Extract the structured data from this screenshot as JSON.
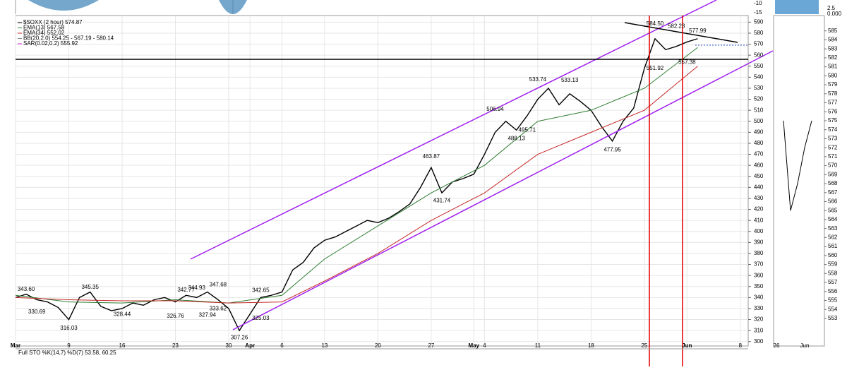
{
  "chart_data": {
    "type": "line",
    "legend": [
      "$SOXX (2 hour) 574.87",
      "EMA(13) 567.58",
      "EMA(34) 552.02",
      "BB(20,2.0) 554.25 - 567.19 - 580.14",
      "SAR(0.02,0.2) 555.92"
    ],
    "lower_panel_title": "Full STO %K(14,7) %D(7) 53.58, 60.25",
    "top_panel_labels": [
      "-10",
      "-15"
    ],
    "zoom_top_labels": [
      "2.5",
      "0.000"
    ],
    "ylim": [
      296,
      596
    ],
    "yticks": [
      590,
      580,
      570,
      560,
      550,
      540,
      530,
      520,
      510,
      500,
      490,
      480,
      470,
      460,
      450,
      440,
      430,
      420,
      410,
      400,
      390,
      380,
      370,
      360,
      350,
      340,
      330,
      320,
      310,
      300
    ],
    "xticks": [
      {
        "value": "Mar 2",
        "label": "Mar"
      },
      {
        "value": "Mar 9",
        "label": "9"
      },
      {
        "value": "Mar 16",
        "label": "16"
      },
      {
        "value": "Mar 23",
        "label": "23"
      },
      {
        "value": "Mar 30",
        "label": "30"
      },
      {
        "value": "Apr 1",
        "label": "Apr"
      },
      {
        "value": "Apr 6",
        "label": "6"
      },
      {
        "value": "Apr 13",
        "label": "13"
      },
      {
        "value": "Apr 20",
        "label": "20"
      },
      {
        "value": "Apr 27",
        "label": "27"
      },
      {
        "value": "May 1",
        "label": "May"
      },
      {
        "value": "May 4",
        "label": "4"
      },
      {
        "value": "May 11",
        "label": "11"
      },
      {
        "value": "May 18",
        "label": "18"
      },
      {
        "value": "May 26",
        "label": "25"
      },
      {
        "value": "Jun 1",
        "label": "Jun"
      },
      {
        "value": "Jun 8",
        "label": "8"
      }
    ],
    "grid": true,
    "series": [
      {
        "name": "$SOXX",
        "color": "#000000",
        "x": [
          "Mar 2",
          "Mar 3",
          "Mar 4",
          "Mar 5",
          "Mar 6",
          "Mar 9",
          "Mar 10",
          "Mar 11",
          "Mar 12",
          "Mar 13",
          "Mar 16",
          "Mar 17",
          "Mar 18",
          "Mar 19",
          "Mar 20",
          "Mar 23",
          "Mar 24",
          "Mar 25",
          "Mar 26",
          "Mar 27",
          "Mar 30",
          "Mar 31",
          "Apr 1",
          "Apr 2",
          "Apr 3",
          "Apr 6",
          "Apr 7",
          "Apr 8",
          "Apr 9",
          "Apr 13",
          "Apr 14",
          "Apr 15",
          "Apr 16",
          "Apr 17",
          "Apr 20",
          "Apr 21",
          "Apr 22",
          "Apr 23",
          "Apr 24",
          "Apr 27",
          "Apr 28",
          "Apr 29",
          "Apr 30",
          "May 1",
          "May 4",
          "May 5",
          "May 6",
          "May 7",
          "May 8",
          "May 11",
          "May 12",
          "May 13",
          "May 14",
          "May 15",
          "May 18",
          "May 19",
          "May 20",
          "May 21",
          "May 22",
          "May 26",
          "May 27",
          "May 28",
          "May 29",
          "Jun 1",
          "Jun 2"
        ],
        "values": [
          340,
          343,
          338,
          336,
          331,
          320,
          340,
          345,
          332,
          328,
          330,
          335,
          333,
          338,
          340,
          336,
          342,
          340,
          345,
          338,
          330,
          310,
          325,
          340,
          342,
          345,
          365,
          372,
          385,
          392,
          395,
          400,
          405,
          410,
          408,
          412,
          418,
          425,
          440,
          458,
          435,
          445,
          448,
          452,
          470,
          490,
          500,
          492,
          505,
          520,
          530,
          515,
          525,
          518,
          510,
          495,
          482,
          500,
          512,
          548,
          575,
          565,
          568,
          572,
          575
        ]
      },
      {
        "name": "EMA(13)",
        "color": "#2e7d32",
        "x": [
          "Mar 2",
          "Mar 9",
          "Mar 16",
          "Mar 23",
          "Mar 30",
          "Apr 6",
          "Apr 13",
          "Apr 20",
          "Apr 27",
          "May 4",
          "May 11",
          "May 18",
          "May 26",
          "Jun 2"
        ],
        "values": [
          342,
          336,
          335,
          338,
          335,
          342,
          375,
          405,
          435,
          460,
          500,
          510,
          530,
          567
        ]
      },
      {
        "name": "EMA(34)",
        "color": "#c62828",
        "x": [
          "Mar 2",
          "Mar 9",
          "Mar 16",
          "Mar 23",
          "Mar 30",
          "Apr 6",
          "Apr 13",
          "Apr 20",
          "Apr 27",
          "May 4",
          "May 11",
          "May 18",
          "May 26",
          "Jun 2"
        ],
        "values": [
          340,
          338,
          337,
          337,
          335,
          336,
          355,
          380,
          410,
          435,
          470,
          490,
          510,
          550
        ]
      }
    ],
    "annotations": [
      {
        "x": "Mar 3",
        "value": 343.6,
        "label": "343.60"
      },
      {
        "x": "Mar 4",
        "value": 330.69,
        "label": "330.69"
      },
      {
        "x": "Mar 9",
        "value": 316.03,
        "label": "316.03"
      },
      {
        "x": "Mar 11",
        "value": 345.35,
        "label": "345.35"
      },
      {
        "x": "Mar 16",
        "value": 328.44,
        "label": "328.44"
      },
      {
        "x": "Mar 23",
        "value": 326.76,
        "label": "326.76"
      },
      {
        "x": "Mar 24",
        "value": 342.77,
        "label": "342.77"
      },
      {
        "x": "Mar 25",
        "value": 344.93,
        "label": "344.93"
      },
      {
        "x": "Mar 26",
        "value": 327.94,
        "label": "327.94"
      },
      {
        "x": "Mar 27",
        "value": 333.62,
        "label": "333.62"
      },
      {
        "x": "Mar 27",
        "value": 347.68,
        "label": "347.68"
      },
      {
        "x": "Mar 31",
        "value": 307.26,
        "label": "307.26"
      },
      {
        "x": "Apr 2",
        "value": 325.03,
        "label": "325.03"
      },
      {
        "x": "Apr 2",
        "value": 342.65,
        "label": "342.65"
      },
      {
        "x": "Apr 27",
        "value": 463.87,
        "label": "463.87"
      },
      {
        "x": "Apr 28",
        "value": 431.74,
        "label": "431.74"
      },
      {
        "x": "May 5",
        "value": 506.94,
        "label": "506.94"
      },
      {
        "x": "May 7",
        "value": 488.13,
        "label": "488.13"
      },
      {
        "x": "May 8",
        "value": 495.71,
        "label": "495.71"
      },
      {
        "x": "May 11",
        "value": 533.74,
        "label": "533.74"
      },
      {
        "x": "May 14",
        "value": 533.13,
        "label": "533.13"
      },
      {
        "x": "May 20",
        "value": 477.95,
        "label": "477.95"
      },
      {
        "x": "May 27",
        "value": 584.5,
        "label": "584.50"
      },
      {
        "x": "May 29",
        "value": 582.23,
        "label": "582.23"
      },
      {
        "x": "Jun 2",
        "value": 577.99,
        "label": "577.99"
      },
      {
        "x": "May 27",
        "value": 551.92,
        "label": "551.92"
      },
      {
        "x": "Jun 1",
        "value": 557.38,
        "label": "557.38"
      }
    ],
    "zoom_ylim": [
      551.5,
      586
    ],
    "zoom_yticks": [
      585,
      584,
      583,
      582,
      581,
      580,
      579,
      578,
      577,
      576,
      575,
      574,
      573,
      572,
      571,
      570,
      569,
      568,
      567,
      566,
      565,
      564,
      563,
      562,
      561,
      560,
      559,
      558,
      557,
      556,
      555,
      554,
      553
    ],
    "zoom_xticks": [
      {
        "value": "May 26",
        "label": "26"
      },
      {
        "value": "Jun 1",
        "label": "Jun"
      }
    ]
  }
}
